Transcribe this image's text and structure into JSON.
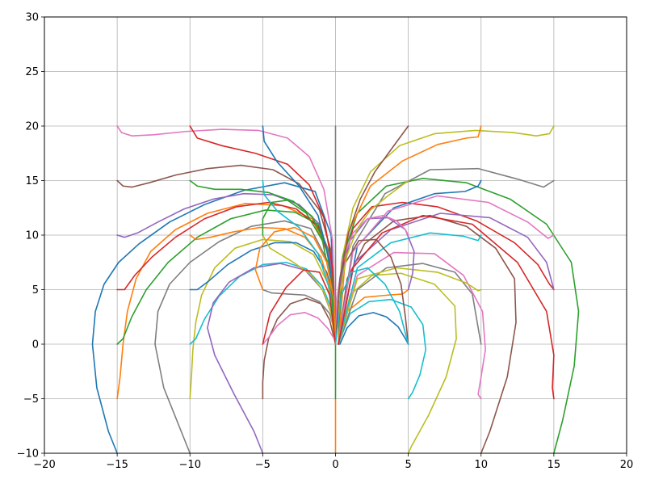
{
  "chart_data": {
    "type": "line",
    "title": "",
    "xlabel": "",
    "ylabel": "",
    "xlim": [
      -20,
      20
    ],
    "ylim": [
      -10,
      30
    ],
    "x_ticks": [
      -20,
      -15,
      -10,
      -5,
      0,
      5,
      10,
      15,
      20
    ],
    "y_ticks": [
      -10,
      -5,
      0,
      5,
      10,
      15,
      20,
      25,
      30
    ],
    "x_tick_labels": [
      "−20",
      "−15",
      "−10",
      "−5",
      "0",
      "5",
      "10",
      "15",
      "20"
    ],
    "y_tick_labels": [
      "−10",
      "−5",
      "0",
      "5",
      "10",
      "15",
      "20",
      "25",
      "30"
    ],
    "grid": true,
    "legend": "none",
    "grid_color": "#b0b0b0",
    "series": [
      {
        "color": "#1f77b4",
        "x": [
          -15,
          -15.6,
          -16.4,
          -16.7,
          -16.5,
          -15.9,
          -14.9,
          -13.5,
          -11.4,
          -9.0,
          -6.3,
          -3.5,
          -1.4,
          -0.3,
          0
        ],
        "y": [
          -10,
          -8.0,
          -4.0,
          0.0,
          3.0,
          5.5,
          7.5,
          9.2,
          11.2,
          12.8,
          14.1,
          14.8,
          14.0,
          10.0,
          0
        ]
      },
      {
        "color": "#ff7f0e",
        "x": [
          -15,
          -14.8,
          -14.6,
          -14.3,
          -13.7,
          -12.7,
          -11.0,
          -8.8,
          -6.2,
          -3.6,
          -1.6,
          -0.4,
          0
        ],
        "y": [
          -5,
          -3.0,
          0.0,
          3.0,
          6.0,
          8.5,
          10.5,
          12.0,
          12.9,
          12.7,
          11.5,
          8.0,
          0
        ]
      },
      {
        "color": "#2ca02c",
        "x": [
          -15,
          -14.6,
          -14.0,
          -13.0,
          -11.5,
          -9.5,
          -7.2,
          -4.8,
          -2.8,
          -1.2,
          -0.3,
          0
        ],
        "y": [
          0,
          0.5,
          2.5,
          5.0,
          7.5,
          9.8,
          11.5,
          12.3,
          12.1,
          11.0,
          8.0,
          0
        ]
      },
      {
        "color": "#d62728",
        "x": [
          -15,
          -14.5,
          -13.8,
          -12.6,
          -11.0,
          -9.0,
          -6.8,
          -4.6,
          -2.7,
          -1.2,
          -0.3,
          0
        ],
        "y": [
          5,
          5.0,
          6.3,
          8.0,
          9.8,
          11.5,
          12.6,
          13.0,
          12.4,
          10.8,
          7.5,
          0
        ]
      },
      {
        "color": "#9467bd",
        "x": [
          -15,
          -14.5,
          -13.6,
          -12.2,
          -10.4,
          -8.4,
          -6.3,
          -4.3,
          -2.5,
          -1.1,
          -0.3,
          0
        ],
        "y": [
          10,
          9.8,
          10.2,
          11.2,
          12.4,
          13.3,
          13.8,
          13.7,
          12.8,
          11.0,
          7.5,
          0
        ]
      },
      {
        "color": "#8c564b",
        "x": [
          -15,
          -14.6,
          -14.0,
          -12.8,
          -11.0,
          -8.8,
          -6.5,
          -4.3,
          -2.5,
          -1.1,
          -0.3,
          0
        ],
        "y": [
          15,
          14.5,
          14.4,
          14.8,
          15.5,
          16.1,
          16.4,
          16.0,
          14.7,
          12.3,
          8.5,
          0
        ]
      },
      {
        "color": "#e377c2",
        "x": [
          -15,
          -14.7,
          -14.0,
          -12.5,
          -10.3,
          -7.8,
          -5.3,
          -3.3,
          -1.8,
          -0.8,
          -0.2,
          0
        ],
        "y": [
          20,
          19.4,
          19.1,
          19.2,
          19.5,
          19.7,
          19.6,
          18.9,
          17.2,
          14.2,
          9.5,
          0
        ]
      },
      {
        "color": "#7f7f7f",
        "x": [
          -10,
          -10.6,
          -11.8,
          -12.4,
          -12.2,
          -11.4,
          -10.0,
          -8.0,
          -5.8,
          -3.5,
          -1.7,
          -0.5,
          0
        ],
        "y": [
          -10,
          -8.0,
          -4.0,
          0.0,
          3.0,
          5.5,
          7.5,
          9.4,
          10.8,
          11.3,
          10.6,
          7.5,
          0
        ]
      },
      {
        "color": "#bcbd22",
        "x": [
          -10,
          -9.9,
          -9.8,
          -9.6,
          -9.2,
          -8.3,
          -6.9,
          -5.0,
          -3.1,
          -1.5,
          -0.5,
          0
        ],
        "y": [
          -5,
          -3.0,
          -0.5,
          2.0,
          4.5,
          7.0,
          8.8,
          9.6,
          9.4,
          8.2,
          5.5,
          0
        ]
      },
      {
        "color": "#17becf",
        "x": [
          -10,
          -9.6,
          -9.0,
          -8.0,
          -6.6,
          -5.0,
          -3.4,
          -2.0,
          -0.9,
          -0.2,
          0
        ],
        "y": [
          0,
          0.5,
          2.3,
          4.4,
          6.2,
          7.3,
          7.5,
          6.9,
          5.3,
          3.0,
          0
        ]
      },
      {
        "color": "#1f77b4",
        "x": [
          -10,
          -9.5,
          -8.7,
          -7.4,
          -5.8,
          -4.2,
          -2.7,
          -1.5,
          -0.6,
          -0.1,
          0
        ],
        "y": [
          5,
          5.0,
          5.8,
          7.3,
          8.6,
          9.3,
          9.3,
          8.5,
          6.6,
          3.8,
          0
        ]
      },
      {
        "color": "#ff7f0e",
        "x": [
          -10,
          -9.6,
          -8.6,
          -7.0,
          -5.2,
          -3.5,
          -2.1,
          -1.0,
          -0.3,
          0
        ],
        "y": [
          10,
          9.6,
          9.8,
          10.3,
          10.7,
          10.6,
          9.8,
          8.0,
          5.0,
          0
        ]
      },
      {
        "color": "#2ca02c",
        "x": [
          -10,
          -9.5,
          -8.3,
          -6.5,
          -4.6,
          -2.9,
          -1.6,
          -0.7,
          -0.2,
          0
        ],
        "y": [
          15,
          14.5,
          14.2,
          14.2,
          13.9,
          13.1,
          11.7,
          9.2,
          5.8,
          0
        ]
      },
      {
        "color": "#d62728",
        "x": [
          -10,
          -9.5,
          -7.8,
          -5.5,
          -3.3,
          -1.8,
          -0.8,
          -0.2,
          0
        ],
        "y": [
          20,
          18.9,
          18.2,
          17.5,
          16.5,
          14.6,
          11.6,
          7.0,
          0
        ]
      },
      {
        "color": "#9467bd",
        "x": [
          -5,
          -5.6,
          -7.0,
          -8.3,
          -8.8,
          -8.4,
          -7.3,
          -5.6,
          -3.8,
          -2.1,
          -0.9,
          -0.2,
          0
        ],
        "y": [
          -10,
          -8.0,
          -4.5,
          -1.0,
          1.5,
          3.8,
          5.7,
          7.0,
          7.4,
          6.8,
          5.0,
          2.5,
          0
        ]
      },
      {
        "color": "#8c564b",
        "x": [
          -5,
          -5.0,
          -4.9,
          -4.6,
          -4.0,
          -3.1,
          -2.0,
          -1.0,
          -0.4,
          0
        ],
        "y": [
          -5,
          -3.5,
          -1.5,
          0.5,
          2.3,
          3.7,
          4.2,
          3.7,
          2.2,
          0
        ]
      },
      {
        "color": "#e377c2",
        "x": [
          -5,
          -4.6,
          -4.0,
          -3.1,
          -2.1,
          -1.2,
          -0.5,
          -0.1,
          0
        ],
        "y": [
          0,
          0.6,
          1.7,
          2.7,
          2.9,
          2.4,
          1.4,
          0.5,
          0
        ]
      },
      {
        "color": "#7f7f7f",
        "x": [
          -5,
          -4.4,
          -3.3,
          -2.1,
          -1.1,
          -0.4,
          -0.1,
          0
        ],
        "y": [
          5,
          4.7,
          4.6,
          4.5,
          3.9,
          2.8,
          1.4,
          0
        ]
      },
      {
        "color": "#bcbd22",
        "x": [
          -5,
          -4.5,
          -3.0,
          -1.7,
          -0.8,
          -0.3,
          0
        ],
        "y": [
          10,
          8.8,
          7.6,
          6.4,
          4.8,
          2.8,
          0
        ]
      },
      {
        "color": "#17becf",
        "x": [
          -5,
          -4.9,
          -4.0,
          -2.5,
          -1.2,
          -0.4,
          0
        ],
        "y": [
          15,
          13.7,
          12.2,
          10.7,
          8.3,
          5.0,
          0
        ]
      },
      {
        "color": "#1f77b4",
        "x": [
          -5,
          -4.9,
          -4.0,
          -2.5,
          -1.2,
          -0.4,
          0
        ],
        "y": [
          20,
          18.6,
          16.7,
          14.5,
          11.8,
          7.5,
          0
        ]
      },
      {
        "color": "#ff7f0e",
        "x": [
          0,
          0,
          0
        ],
        "y": [
          -10,
          -7.0,
          -5
        ]
      },
      {
        "color": "#2ca02c",
        "x": [
          0,
          0,
          0
        ],
        "y": [
          -5,
          -2.5,
          0
        ]
      },
      {
        "color": "#7f7f7f",
        "x": [
          0,
          0,
          0
        ],
        "y": [
          0,
          10.0,
          20
        ]
      },
      {
        "color": "#bcbd22",
        "x": [
          0.2,
          0.4,
          1.2,
          2.4,
          4.4,
          6.8,
          9.6,
          12.2,
          13.8,
          14.7,
          15
        ],
        "y": [
          0,
          7.5,
          12.5,
          15.8,
          18.2,
          19.3,
          19.6,
          19.4,
          19.1,
          19.3,
          20
        ]
      },
      {
        "color": "#d62728",
        "x": [
          0.2,
          0.4,
          1.2,
          2.5,
          4.6,
          7.0,
          9.7,
          12.3,
          13.9,
          14.7,
          15
        ],
        "y": [
          0,
          6.5,
          10.6,
          12.6,
          13.0,
          12.6,
          11.3,
          9.3,
          7.3,
          5.5,
          5
        ]
      },
      {
        "color": "#2ca02c",
        "x": [
          0.2,
          0.5,
          1.5,
          3.5,
          6.0,
          9.0,
          12.0,
          14.5,
          16.2,
          16.7,
          16.4,
          15.6,
          15
        ],
        "y": [
          0,
          8.0,
          12.0,
          14.5,
          15.2,
          14.8,
          13.3,
          11.0,
          7.5,
          3.0,
          -2.0,
          -7.0,
          -10
        ]
      },
      {
        "color": "#8c564b",
        "x": [
          0.2,
          0.8,
          2.0,
          4.0,
          6.5,
          9.0,
          11.0,
          12.3,
          12.4,
          11.8,
          10.6,
          10
        ],
        "y": [
          0,
          6.0,
          9.2,
          11.3,
          11.8,
          10.8,
          8.8,
          6.0,
          2.0,
          -3.0,
          -8.0,
          -10
        ]
      },
      {
        "color": "#bcbd22",
        "x": [
          0.2,
          1.0,
          2.5,
          4.5,
          6.8,
          8.2,
          8.3,
          7.6,
          6.4,
          5.2,
          5
        ],
        "y": [
          0,
          4.5,
          6.3,
          6.5,
          5.5,
          3.5,
          0.5,
          -3.0,
          -6.5,
          -9.4,
          -10
        ]
      },
      {
        "color": "#1f77b4",
        "x": [
          0.3,
          0.8,
          1.6,
          2.6,
          3.5,
          4.3,
          4.8,
          5
        ],
        "y": [
          0,
          1.5,
          2.6,
          2.9,
          2.5,
          1.6,
          0.5,
          0
        ]
      },
      {
        "color": "#17becf",
        "x": [
          0.2,
          1.0,
          2.3,
          3.8,
          5.2,
          6.0,
          6.2,
          5.8,
          5.3,
          5
        ],
        "y": [
          0,
          2.8,
          3.9,
          4.1,
          3.4,
          1.8,
          -0.5,
          -2.8,
          -4.4,
          -5
        ]
      },
      {
        "color": "#ff7f0e",
        "x": [
          0.2,
          0.8,
          2.0,
          3.6,
          4.6,
          5
        ],
        "y": [
          0,
          3.0,
          4.3,
          4.5,
          4.6,
          5
        ]
      },
      {
        "color": "#7f7f7f",
        "x": [
          0.2,
          1.5,
          3.5,
          6.0,
          8.2,
          9.4,
          9.8,
          10
        ],
        "y": [
          0,
          5.0,
          7.0,
          7.4,
          6.6,
          4.6,
          1.5,
          0
        ]
      },
      {
        "color": "#e377c2",
        "x": [
          0.2,
          1.5,
          4.0,
          6.8,
          8.8,
          10.1,
          10.3,
          10.0,
          9.8,
          10
        ],
        "y": [
          0,
          6.3,
          8.4,
          8.3,
          6.3,
          3.0,
          -0.5,
          -3.0,
          -4.6,
          -5
        ]
      },
      {
        "color": "#bcbd22",
        "x": [
          0.2,
          1.5,
          4.2,
          7.0,
          9.0,
          9.8,
          10
        ],
        "y": [
          0,
          6.0,
          7.0,
          6.6,
          5.6,
          4.9,
          5
        ]
      },
      {
        "color": "#17becf",
        "x": [
          0.2,
          1.5,
          3.8,
          6.5,
          8.8,
          9.8,
          10
        ],
        "y": [
          0,
          7.0,
          9.3,
          10.2,
          9.9,
          9.5,
          10
        ]
      },
      {
        "color": "#ff7f0e",
        "x": [
          0.2,
          0.8,
          2.4,
          4.6,
          7.0,
          9.0,
          9.8,
          10
        ],
        "y": [
          0,
          10.0,
          14.5,
          16.8,
          18.3,
          18.9,
          19.0,
          20
        ]
      },
      {
        "color": "#1f77b4",
        "x": [
          0.2,
          1.5,
          4.0,
          6.8,
          8.9,
          9.8,
          10
        ],
        "y": [
          0,
          9.0,
          12.5,
          13.8,
          14.0,
          14.5,
          15
        ]
      },
      {
        "color": "#7f7f7f",
        "x": [
          0.2,
          1.2,
          3.4,
          6.5,
          9.8,
          12.6,
          14.3,
          15
        ],
        "y": [
          0,
          9.0,
          13.8,
          16.0,
          16.1,
          15.1,
          14.4,
          15
        ]
      },
      {
        "color": "#e377c2",
        "x": [
          0.2,
          1.2,
          3.6,
          7.0,
          10.5,
          13.2,
          14.6,
          15
        ],
        "y": [
          0,
          8.5,
          12.2,
          13.6,
          13.0,
          11.2,
          9.7,
          10
        ]
      },
      {
        "color": "#9467bd",
        "x": [
          0.2,
          1.3,
          3.8,
          7.2,
          10.6,
          13.2,
          14.5,
          15
        ],
        "y": [
          0,
          7.5,
          10.5,
          12.0,
          11.6,
          9.8,
          7.5,
          5
        ]
      },
      {
        "color": "#d62728",
        "x": [
          0.2,
          1.2,
          3.2,
          6.0,
          9.4,
          12.5,
          14.5,
          15.0,
          14.9,
          15
        ],
        "y": [
          0,
          7.0,
          10.2,
          11.8,
          11.0,
          7.5,
          3.0,
          -1.0,
          -4.0,
          -5
        ]
      },
      {
        "color": "#8c564b",
        "x": [
          5,
          4.8,
          4.5,
          3.8,
          2.8,
          1.6,
          0.7,
          0.2,
          0
        ],
        "y": [
          0,
          2.5,
          5.5,
          8.0,
          9.6,
          9.5,
          7.5,
          4.0,
          0
        ]
      },
      {
        "color": "#9467bd",
        "x": [
          5,
          5.3,
          5.4,
          4.8,
          3.6,
          2.2,
          1.0,
          0.3,
          0
        ],
        "y": [
          5,
          6.5,
          8.5,
          10.5,
          11.6,
          11.5,
          9.5,
          5.5,
          0
        ]
      },
      {
        "color": "#e377c2",
        "x": [
          5,
          4.8,
          4.2,
          3.3,
          2.2,
          1.2,
          0.5,
          0.1,
          0
        ],
        "y": [
          10,
          10.5,
          11.3,
          11.8,
          11.5,
          10.2,
          7.8,
          4.2,
          0
        ]
      },
      {
        "color": "#bcbd22",
        "x": [
          5,
          3.6,
          2.4,
          1.5,
          0.8,
          0.3,
          0
        ],
        "y": [
          15,
          13.6,
          12.3,
          10.6,
          8.2,
          4.8,
          0
        ]
      },
      {
        "color": "#8c564b",
        "x": [
          5,
          3.9,
          2.7,
          1.7,
          0.9,
          0.3,
          0
        ],
        "y": [
          20,
          18.0,
          15.8,
          13.3,
          10.2,
          6.0,
          0
        ]
      },
      {
        "color": "#2ca02c",
        "x": [
          -5,
          -5.0,
          -4.4,
          -3.3,
          -2.0,
          -0.9,
          -0.3,
          0
        ],
        "y": [
          10,
          11.5,
          13.0,
          13.2,
          12.0,
          9.5,
          5.5,
          0
        ]
      },
      {
        "color": "#ff7f0e",
        "x": [
          -5,
          -5.5,
          -5.2,
          -4.2,
          -2.8,
          -1.5,
          -0.6,
          -0.1,
          0
        ],
        "y": [
          5,
          6.8,
          8.8,
          10.3,
          10.7,
          9.8,
          7.5,
          4.0,
          0
        ]
      },
      {
        "color": "#d62728",
        "x": [
          -5,
          -4.5,
          -3.4,
          -2.2,
          -1.1,
          -0.4,
          0
        ],
        "y": [
          0,
          2.8,
          5.2,
          6.8,
          6.6,
          4.5,
          0
        ]
      },
      {
        "color": "#17becf",
        "x": [
          5,
          4.4,
          3.4,
          2.2,
          1.1,
          0.4,
          0
        ],
        "y": [
          0,
          3.0,
          5.5,
          7.0,
          6.6,
          4.5,
          0
        ]
      }
    ]
  }
}
